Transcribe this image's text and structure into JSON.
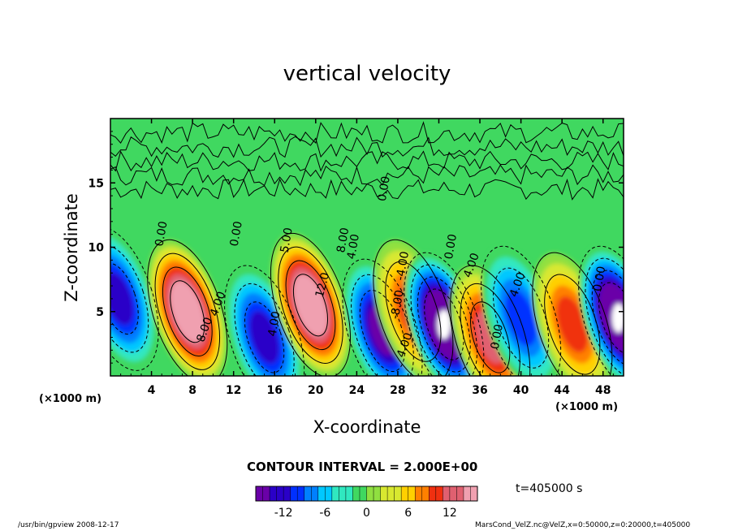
{
  "chart_data": {
    "type": "heatmap",
    "title": "vertical velocity",
    "xlabel": "X-coordinate",
    "ylabel": "Z-coordinate",
    "x_unit_label": "(×1000 m)",
    "xlim": [
      0,
      50
    ],
    "ylim": [
      0,
      20
    ],
    "x_ticks": [
      4,
      8,
      12,
      16,
      20,
      24,
      28,
      32,
      36,
      40,
      44,
      48
    ],
    "y_ticks": [
      5,
      10,
      15
    ],
    "contour_interval_text": "CONTOUR INTERVAL = 2.000E+00",
    "time_text": "t=405000 s",
    "colorbar": {
      "range": [
        -16,
        16
      ],
      "ticks": [
        -12,
        -6,
        0,
        6,
        12
      ],
      "colors": [
        "#6a00a8",
        "#2a00c8",
        "#0030ff",
        "#0080ff",
        "#00c8ff",
        "#30e8c0",
        "#40d860",
        "#90e040",
        "#d8e830",
        "#ffd000",
        "#ff8000",
        "#f03010",
        "#e06070",
        "#f0a0b0"
      ]
    },
    "features": [
      {
        "x": 0.8,
        "z": 6.0,
        "value": -9
      },
      {
        "x": 7.5,
        "z": 5.0,
        "value": 14
      },
      {
        "x": 15.0,
        "z": 3.0,
        "value": -10
      },
      {
        "x": 19.5,
        "z": 5.5,
        "value": 14
      },
      {
        "x": 26.5,
        "z": 3.5,
        "value": -12
      },
      {
        "x": 29.5,
        "z": 5.0,
        "value": 8
      },
      {
        "x": 32.5,
        "z": 4.0,
        "value": -16
      },
      {
        "x": 37.0,
        "z": 3.0,
        "value": 10
      },
      {
        "x": 40.0,
        "z": 4.5,
        "value": -8
      },
      {
        "x": 45.0,
        "z": 4.0,
        "value": 8
      },
      {
        "x": 49.5,
        "z": 4.5,
        "value": -16
      }
    ],
    "contour_labels": [
      {
        "x": 5.3,
        "z": 11.0,
        "text": "0.00",
        "angle": -80
      },
      {
        "x": 10.8,
        "z": 5.5,
        "text": "4.00",
        "angle": -70
      },
      {
        "x": 9.5,
        "z": 3.5,
        "text": "8.00",
        "angle": -70
      },
      {
        "x": 12.6,
        "z": 11.0,
        "text": "0.00",
        "angle": -80
      },
      {
        "x": 16.3,
        "z": 4.0,
        "text": "4.00",
        "angle": -80
      },
      {
        "x": 17.5,
        "z": 10.5,
        "text": "5.00",
        "angle": -80
      },
      {
        "x": 21.0,
        "z": 7.0,
        "text": "12.0",
        "angle": -75
      },
      {
        "x": 23.0,
        "z": 10.5,
        "text": "8.00",
        "angle": -80
      },
      {
        "x": 24.0,
        "z": 10.0,
        "text": "4.00",
        "angle": -80
      },
      {
        "x": 27.0,
        "z": 14.5,
        "text": "0.00",
        "angle": -80
      },
      {
        "x": 28.8,
        "z": 8.5,
        "text": "-4.00",
        "angle": -80
      },
      {
        "x": 28.3,
        "z": 5.5,
        "text": "-8.00",
        "angle": -80
      },
      {
        "x": 29.0,
        "z": 2.3,
        "text": "4.00",
        "angle": -70
      },
      {
        "x": 33.5,
        "z": 10.0,
        "text": "0.00",
        "angle": -80
      },
      {
        "x": 35.5,
        "z": 8.5,
        "text": "4.00",
        "angle": -70
      },
      {
        "x": 38.0,
        "z": 3.0,
        "text": "0.00",
        "angle": -80
      },
      {
        "x": 40.0,
        "z": 7.0,
        "text": "4.00",
        "angle": -70
      },
      {
        "x": 48.0,
        "z": 7.5,
        "text": "0.00",
        "angle": -80
      }
    ]
  },
  "labels": {
    "title": "vertical velocity",
    "xlabel": "X-coordinate",
    "ylabel": "Z-coordinate",
    "x_unit_left": "(×1000 m)",
    "x_unit_right": "(×1000 m)",
    "contour": "CONTOUR INTERVAL = 2.000E+00",
    "time": "t=405000 s",
    "footer_left": "/usr/bin/gpview   2008-12-17",
    "footer_right": "MarsCond_VelZ.nc@VelZ,x=0:50000,z=0:20000,t=405000"
  }
}
